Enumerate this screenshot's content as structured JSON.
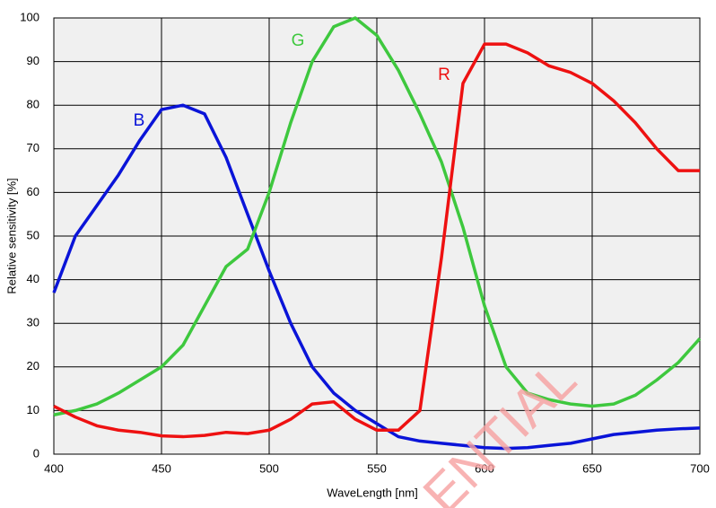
{
  "chart_data": {
    "type": "line",
    "x_label": "WaveLength [nm]",
    "y_label": "Relative sensitivity [%]",
    "x": [
      400,
      410,
      420,
      430,
      440,
      450,
      460,
      470,
      480,
      490,
      500,
      510,
      520,
      530,
      540,
      550,
      560,
      570,
      580,
      590,
      600,
      610,
      620,
      630,
      640,
      650,
      660,
      670,
      680,
      690,
      700
    ],
    "series": [
      {
        "name": "B",
        "color": "#0a14d8",
        "values": [
          37,
          50,
          57,
          64,
          72,
          79,
          80,
          78,
          68,
          55,
          42,
          30,
          20,
          14,
          10,
          7,
          4,
          3,
          2.5,
          2,
          1.5,
          1.3,
          1.5,
          2,
          2.5,
          3.5,
          4.5,
          5,
          5.5,
          5.8,
          6
        ]
      },
      {
        "name": "G",
        "color": "#3ec83e",
        "values": [
          9,
          10,
          11.5,
          14,
          17,
          20,
          25,
          34,
          43,
          47,
          60,
          76,
          90,
          98,
          100,
          96,
          88,
          78,
          67,
          52,
          34,
          20,
          14,
          12.5,
          11.5,
          11,
          11.5,
          13.5,
          17,
          21,
          26.5
        ]
      },
      {
        "name": "R",
        "color": "#ee1111",
        "values": [
          11,
          8.5,
          6.5,
          5.5,
          5,
          4.2,
          4,
          4.3,
          5,
          4.7,
          5.5,
          8,
          11.5,
          12,
          8,
          5.5,
          5.5,
          10,
          45,
          85,
          94,
          94,
          92,
          89,
          87.5,
          85,
          81,
          76,
          70,
          65,
          65
        ]
      }
    ],
    "xlim": [
      400,
      700
    ],
    "xticks": [
      400,
      450,
      500,
      550,
      600,
      650,
      700
    ],
    "ylim": [
      0,
      100
    ],
    "yticks": [
      0,
      10,
      20,
      30,
      40,
      50,
      60,
      70,
      80,
      90,
      100
    ],
    "grid": true,
    "watermark": "ENTIAL"
  }
}
